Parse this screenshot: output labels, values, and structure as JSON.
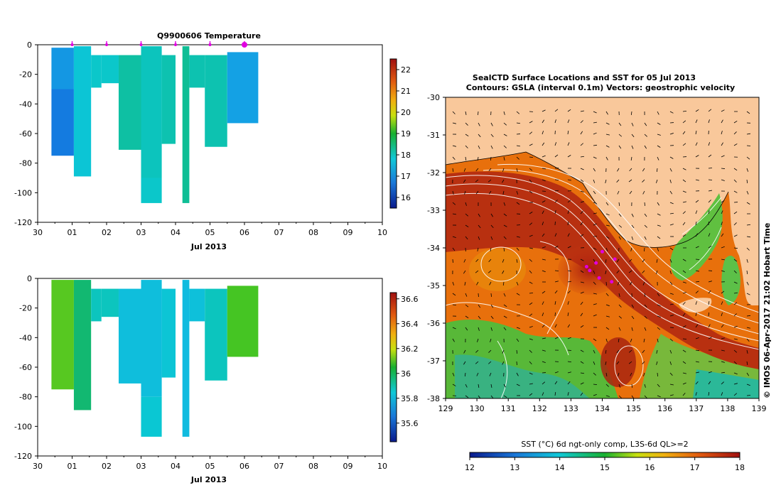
{
  "colors": {
    "land": "#f9c89b",
    "ocean_warm": "#c03a0a",
    "ocean_mid": "#f08a10",
    "ocean_cool": "#5cc04a",
    "marker": "#e000e0"
  },
  "profiles": {
    "title": "Q9900606  Temperature",
    "xlabel": "Jul 2013",
    "x_ticks": [
      "30",
      "01",
      "02",
      "03",
      "04",
      "05",
      "06",
      "07",
      "08",
      "09",
      "10"
    ],
    "y_ticks": [
      "0",
      "-20",
      "-40",
      "-60",
      "-80",
      "-100",
      "-120"
    ],
    "surface_markers": [
      1.0,
      2.0,
      3.0,
      4.0,
      5.0,
      6.0
    ]
  },
  "chart_data": [
    {
      "type": "heatmap",
      "name": "temperature-profiles",
      "title": "Q9900606  Temperature",
      "xlabel": "Jul 2013",
      "ylabel": "",
      "xlim": [
        0,
        10
      ],
      "ylim": [
        -120,
        0
      ],
      "colorbar": {
        "min": 15.5,
        "max": 22.5,
        "ticks": [
          "16",
          "17",
          "18",
          "19",
          "20",
          "21",
          "22"
        ],
        "tick_values": [
          16,
          17,
          18,
          19,
          20,
          21,
          22
        ]
      },
      "bars": [
        {
          "x0": 0.4,
          "x1": 1.05,
          "bottom": -75,
          "segments": [
            {
              "top": -2,
              "bottom": -30,
              "value": 17.3
            },
            {
              "top": -30,
              "bottom": -75,
              "value": 17.0
            }
          ]
        },
        {
          "x0": 1.05,
          "x1": 1.55,
          "bottom": -89,
          "segments": [
            {
              "top": -1,
              "bottom": -89,
              "value": 18.3
            }
          ]
        },
        {
          "x0": 1.55,
          "x1": 1.85,
          "bottom": -29,
          "segments": [
            {
              "top": -7,
              "bottom": -29,
              "value": 18.5
            }
          ]
        },
        {
          "x0": 1.85,
          "x1": 2.35,
          "bottom": -26,
          "segments": [
            {
              "top": -7,
              "bottom": -26,
              "value": 18.5
            }
          ]
        },
        {
          "x0": 2.35,
          "x1": 3.0,
          "bottom": -71,
          "segments": [
            {
              "top": -7,
              "bottom": -71,
              "value": 18.8
            }
          ]
        },
        {
          "x0": 3.0,
          "x1": 3.6,
          "bottom": -107,
          "segments": [
            {
              "top": -1,
              "bottom": -90,
              "value": 18.6
            },
            {
              "top": -90,
              "bottom": -107,
              "value": 18.5
            }
          ]
        },
        {
          "x0": 3.6,
          "x1": 4.0,
          "bottom": -67,
          "segments": [
            {
              "top": -7,
              "bottom": -67,
              "value": 18.7
            }
          ]
        },
        {
          "x0": 4.2,
          "x1": 4.4,
          "bottom": -107,
          "segments": [
            {
              "top": -1,
              "bottom": -107,
              "value": 18.9
            }
          ]
        },
        {
          "x0": 4.4,
          "x1": 4.85,
          "bottom": -29,
          "segments": [
            {
              "top": -7,
              "bottom": -29,
              "value": 18.7
            }
          ]
        },
        {
          "x0": 4.85,
          "x1": 5.5,
          "bottom": -69,
          "segments": [
            {
              "top": -7,
              "bottom": -69,
              "value": 18.7
            }
          ]
        },
        {
          "x0": 5.5,
          "x1": 6.4,
          "bottom": -53,
          "segments": [
            {
              "top": -5,
              "bottom": -53,
              "value": 17.4
            }
          ]
        }
      ]
    },
    {
      "type": "heatmap",
      "name": "salinity-profiles",
      "title": "",
      "xlabel": "Jul 2013",
      "ylabel": "",
      "xlim": [
        0,
        10
      ],
      "ylim": [
        -120,
        0
      ],
      "colorbar": {
        "min": 35.45,
        "max": 36.65,
        "ticks": [
          "35.6",
          "35.8",
          "36",
          "36.2",
          "36.4",
          "36.6"
        ],
        "tick_values": [
          35.6,
          35.8,
          36.0,
          36.2,
          36.4,
          36.6
        ]
      },
      "bars": [
        {
          "x0": 0.4,
          "x1": 1.05,
          "bottom": -75,
          "segments": [
            {
              "top": -1,
              "bottom": -75,
              "value": 36.25
            }
          ]
        },
        {
          "x0": 1.05,
          "x1": 1.55,
          "bottom": -89,
          "segments": [
            {
              "top": -1,
              "bottom": -89,
              "value": 36.08
            }
          ]
        },
        {
          "x0": 1.55,
          "x1": 1.85,
          "bottom": -29,
          "segments": [
            {
              "top": -7,
              "bottom": -29,
              "value": 35.98
            }
          ]
        },
        {
          "x0": 1.85,
          "x1": 2.35,
          "bottom": -26,
          "segments": [
            {
              "top": -7,
              "bottom": -26,
              "value": 35.98
            }
          ]
        },
        {
          "x0": 2.35,
          "x1": 3.0,
          "bottom": -71,
          "segments": [
            {
              "top": -7,
              "bottom": -71,
              "value": 35.88
            }
          ]
        },
        {
          "x0": 3.0,
          "x1": 3.6,
          "bottom": -107,
          "segments": [
            {
              "top": -1,
              "bottom": -80,
              "value": 35.88
            },
            {
              "top": -80,
              "bottom": -107,
              "value": 35.95
            }
          ]
        },
        {
          "x0": 3.6,
          "x1": 4.0,
          "bottom": -67,
          "segments": [
            {
              "top": -7,
              "bottom": -67,
              "value": 35.93
            }
          ]
        },
        {
          "x0": 4.2,
          "x1": 4.4,
          "bottom": -107,
          "segments": [
            {
              "top": -1,
              "bottom": -107,
              "value": 35.86
            }
          ]
        },
        {
          "x0": 4.4,
          "x1": 4.85,
          "bottom": -29,
          "segments": [
            {
              "top": -7,
              "bottom": -29,
              "value": 35.9
            }
          ]
        },
        {
          "x0": 4.85,
          "x1": 5.5,
          "bottom": -69,
          "segments": [
            {
              "top": -7,
              "bottom": -69,
              "value": 35.98
            }
          ]
        },
        {
          "x0": 5.5,
          "x1": 6.4,
          "bottom": -53,
          "segments": [
            {
              "top": -5,
              "bottom": -53,
              "value": 36.24
            }
          ]
        }
      ]
    },
    {
      "type": "heatmap",
      "name": "sst-map",
      "title": "SealCTD Surface Locations and SST for 05 Jul 2013",
      "subtitle": "Contours: GSLA (interval 0.1m) Vectors: geostrophic velocity",
      "xlabel": "",
      "ylabel": "",
      "xlim": [
        129,
        139
      ],
      "ylim": [
        -38,
        -30
      ],
      "x_ticks": [
        "129",
        "130",
        "131",
        "132",
        "133",
        "134",
        "135",
        "136",
        "137",
        "138",
        "139"
      ],
      "y_ticks": [
        "-30",
        "-31",
        "-32",
        "-33",
        "-34",
        "-35",
        "-36",
        "-37",
        "-38"
      ],
      "side_label": "© IMOS 06-Apr-2017 21:02 Hobart Time",
      "colorbar": {
        "label": "SST (°C) 6d ngt-only comp, L3S-6d QL>=2",
        "min": 12,
        "max": 18,
        "ticks": [
          "12",
          "13",
          "14",
          "15",
          "16",
          "17",
          "18"
        ],
        "tick_values": [
          12,
          13,
          14,
          15,
          16,
          17,
          18
        ]
      },
      "seal_locations": [
        [
          133.6,
          -34.6
        ],
        [
          133.8,
          -34.4
        ],
        [
          134.0,
          -34.1
        ],
        [
          134.4,
          -34.3
        ],
        [
          133.9,
          -34.8
        ],
        [
          134.3,
          -34.9
        ],
        [
          133.5,
          -34.5
        ]
      ]
    }
  ]
}
